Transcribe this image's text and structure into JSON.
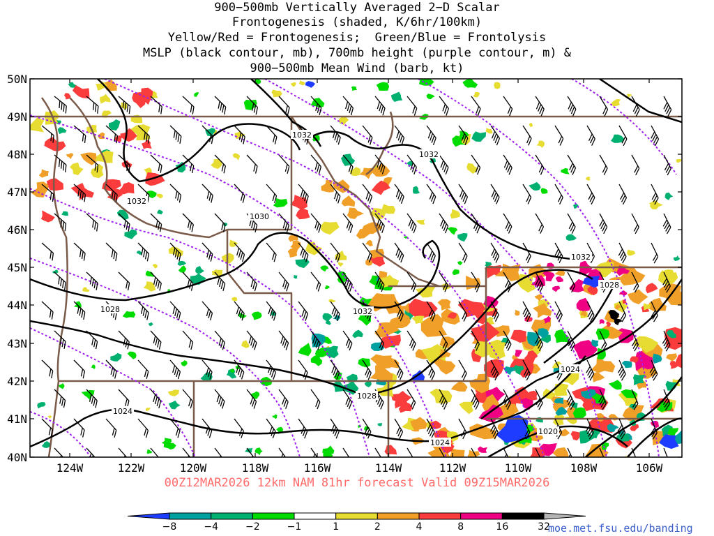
{
  "title_lines": [
    "900−500mb Vertically Averaged 2−D Scalar",
    "Frontogenesis (shaded, K/6hr/100km)",
    "Yellow/Red = Frontogenesis;  Green/Blue = Frontolysis",
    "MSLP (black contour, mb), 700mb height (purple contour, m) &",
    "900−500mb Mean Wind (barb, kt)"
  ],
  "axes": {
    "lat_labels": [
      "50N",
      "49N",
      "48N",
      "47N",
      "46N",
      "45N",
      "44N",
      "43N",
      "42N",
      "41N",
      "40N"
    ],
    "lon_labels": [
      "124W",
      "122W",
      "120W",
      "118W",
      "116W",
      "114W",
      "112W",
      "110W",
      "108W",
      "106W"
    ]
  },
  "isobar_labels": [
    "1032",
    "1032",
    "1032",
    "1030",
    "1032",
    "1028",
    "1032",
    "1028",
    "1024",
    "1024",
    "1028",
    "1024",
    "1020"
  ],
  "colorbar": {
    "ticks": [
      "−8",
      "−4",
      "−2",
      "−1",
      "1",
      "2",
      "4",
      "8",
      "16",
      "32"
    ],
    "colors": [
      "#1e3cff",
      "#00a0a0",
      "#00b070",
      "#00dc00",
      "#ffffff",
      "#e6dc32",
      "#f0a028",
      "#fa3c3c",
      "#f00082",
      "#000000",
      "#b4b4b4"
    ]
  },
  "shade_colors": {
    "yellow": "#e6dc32",
    "orange": "#f0a028",
    "red": "#fa3c3c",
    "magenta": "#f00082",
    "green": "#00dc00",
    "teal": "#00b070",
    "cyan": "#00a0a0",
    "blue": "#1e3cff",
    "black": "#000000"
  },
  "line_colors": {
    "isobar": "#000000",
    "height": "#a020f0",
    "border": "#7a5a48"
  },
  "valid_text": "00Z12MAR2026 12km NAM 81hr forecast Valid 09Z15MAR2026",
  "credit_text": "moe.met.fsu.edu/banding"
}
